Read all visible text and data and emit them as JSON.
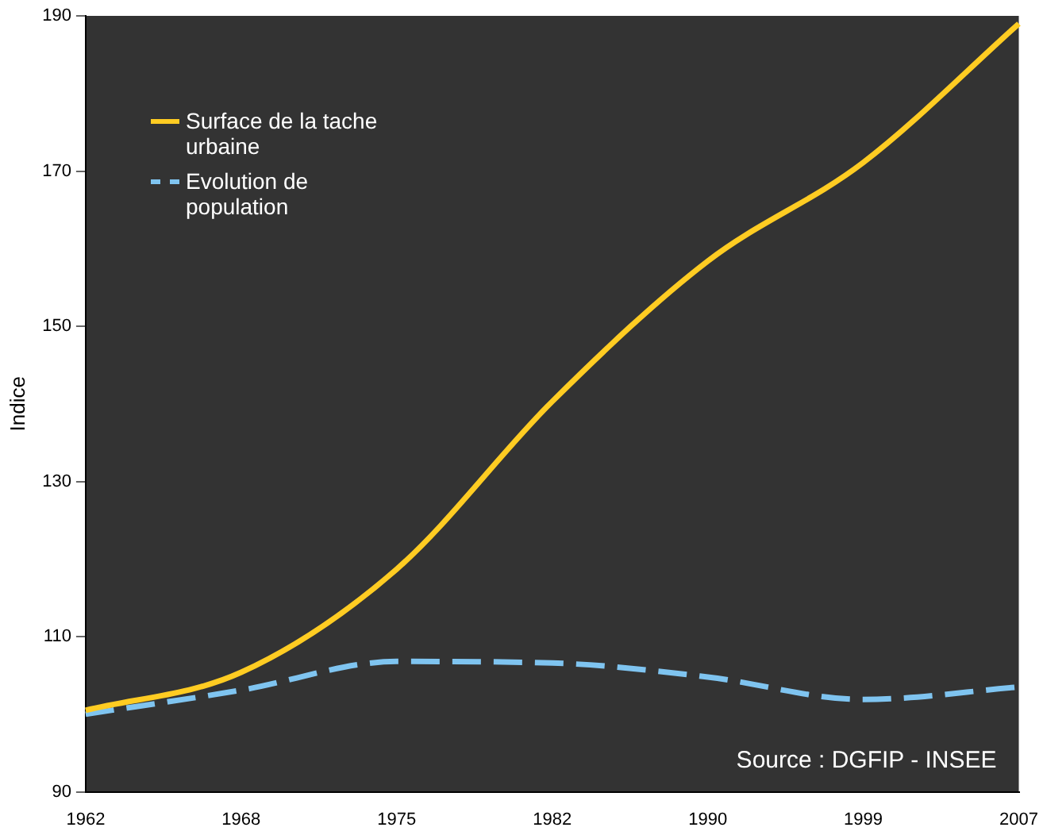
{
  "chart_data": {
    "type": "line",
    "ylabel": "Indice",
    "categories": [
      "1962",
      "1968",
      "1975",
      "1982",
      "1990",
      "1999",
      "2007"
    ],
    "series": [
      {
        "name": "Surface de la tache urbaine",
        "color": "#ffcc22",
        "values": [
          100.5,
          105.4,
          118.7,
          140.3,
          158.4,
          171.1,
          189
        ],
        "line_style": "solid"
      },
      {
        "name": "Evolution de population",
        "color": "#7fc4f0",
        "values": [
          100,
          103.1,
          106.8,
          106.6,
          104.8,
          101.9,
          103.5
        ],
        "line_style": "dashed"
      }
    ],
    "ylim": [
      90,
      190
    ],
    "yticks": [
      90,
      110,
      130,
      150,
      170,
      190
    ],
    "grid": false,
    "legend": "top left",
    "marker": "none",
    "annotations": [
      "Source : DGFIP - INSEE"
    ]
  }
}
